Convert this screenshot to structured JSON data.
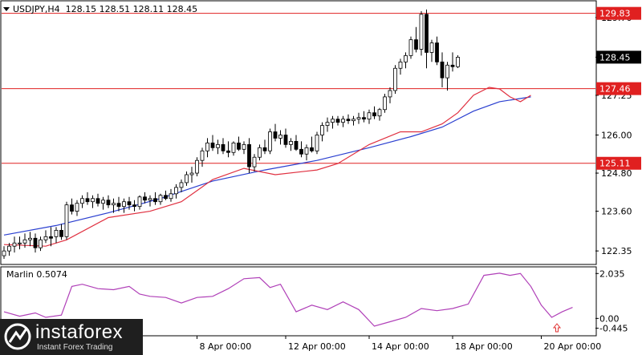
{
  "header": {
    "symbol": "USDJPY,H4",
    "ohlc": "128.15 128.51 128.11 128.45"
  },
  "oscillator": {
    "label": "Marlin 0.5074",
    "ticks": [
      "2.035",
      "0.00",
      "-0.445"
    ]
  },
  "logo": {
    "name": "instaforex",
    "tagline": "Instant Forex Trading"
  },
  "colors": {
    "up": "#ffffff",
    "down": "#000000",
    "ma_red": "#e03040",
    "ma_blue": "#2a3fd0",
    "level_line": "#e02020",
    "level_bg": "#e02020",
    "price_bg": "#000000",
    "marlin": "#b040b8",
    "arrow": "#e03030"
  },
  "chart_data": {
    "type": "candlestick",
    "symbol": "USDJPY",
    "timeframe": "H4",
    "ylim": [
      121.95,
      130.2
    ],
    "y_ticks": [
      122.35,
      123.6,
      124.8,
      126.0,
      127.25,
      128.45,
      129.7
    ],
    "y_tick_labels": [
      "122.35",
      "123.60",
      "124.80",
      "126.00",
      "127.25",
      "128.45",
      "129.70"
    ],
    "x_labels": [
      {
        "index": 37,
        "label": "8 Apr 00:00"
      },
      {
        "index": 54,
        "label": "12 Apr 00:00"
      },
      {
        "index": 70,
        "label": "14 Apr 00:00"
      },
      {
        "index": 86,
        "label": "18 Apr 00:00"
      },
      {
        "index": 103,
        "label": "20 Apr 00:00"
      }
    ],
    "levels": [
      {
        "value": 129.83,
        "label": "129.83"
      },
      {
        "value": 127.46,
        "label": "127.46"
      },
      {
        "value": 125.11,
        "label": "125.11"
      }
    ],
    "current_price": {
      "value": 128.45,
      "label": "128.45"
    },
    "candles": [
      [
        122.2,
        122.5,
        122.1,
        122.35
      ],
      [
        122.35,
        122.6,
        122.2,
        122.5
      ],
      [
        122.5,
        122.8,
        122.3,
        122.6
      ],
      [
        122.6,
        122.8,
        122.4,
        122.6
      ],
      [
        122.6,
        122.9,
        122.45,
        122.7
      ],
      [
        122.7,
        122.95,
        122.5,
        122.75
      ],
      [
        122.75,
        122.9,
        122.3,
        122.45
      ],
      [
        122.45,
        122.8,
        122.35,
        122.7
      ],
      [
        122.7,
        123.0,
        122.6,
        122.8
      ],
      [
        122.8,
        123.1,
        122.5,
        122.75
      ],
      [
        122.8,
        123.1,
        122.6,
        123.0
      ],
      [
        123.0,
        123.2,
        122.7,
        122.8
      ],
      [
        122.8,
        123.9,
        122.7,
        123.8
      ],
      [
        123.8,
        124.0,
        123.5,
        123.6
      ],
      [
        123.6,
        123.95,
        123.45,
        123.85
      ],
      [
        123.85,
        124.1,
        123.7,
        124.0
      ],
      [
        124.0,
        124.2,
        123.8,
        123.9
      ],
      [
        123.9,
        124.1,
        123.7,
        124.0
      ],
      [
        124.0,
        124.15,
        123.75,
        123.85
      ],
      [
        123.85,
        124.05,
        123.65,
        123.95
      ],
      [
        123.95,
        124.1,
        123.7,
        123.8
      ],
      [
        123.8,
        124.0,
        123.55,
        123.85
      ],
      [
        123.85,
        124.05,
        123.6,
        123.75
      ],
      [
        123.75,
        124.0,
        123.55,
        123.9
      ],
      [
        123.9,
        124.05,
        123.65,
        123.8
      ],
      [
        123.8,
        123.95,
        123.6,
        123.75
      ],
      [
        123.75,
        124.1,
        123.65,
        124.05
      ],
      [
        124.05,
        124.2,
        123.85,
        123.95
      ],
      [
        123.95,
        124.1,
        123.75,
        124.0
      ],
      [
        124.0,
        124.2,
        123.8,
        123.9
      ],
      [
        123.9,
        124.15,
        123.8,
        124.1
      ],
      [
        124.1,
        124.25,
        123.95,
        124.0
      ],
      [
        124.0,
        124.3,
        123.9,
        124.15
      ],
      [
        124.15,
        124.45,
        124.0,
        124.35
      ],
      [
        124.35,
        124.6,
        124.2,
        124.5
      ],
      [
        124.5,
        124.85,
        124.4,
        124.75
      ],
      [
        124.75,
        125.0,
        124.5,
        124.8
      ],
      [
        124.8,
        125.3,
        124.7,
        125.2
      ],
      [
        125.2,
        125.6,
        125.0,
        125.5
      ],
      [
        125.5,
        125.9,
        125.3,
        125.75
      ],
      [
        125.75,
        126.0,
        125.5,
        125.6
      ],
      [
        125.6,
        125.85,
        125.4,
        125.7
      ],
      [
        125.7,
        125.9,
        125.4,
        125.5
      ],
      [
        125.5,
        125.8,
        125.3,
        125.45
      ],
      [
        125.45,
        125.8,
        125.35,
        125.75
      ],
      [
        125.75,
        125.95,
        125.5,
        125.55
      ],
      [
        125.55,
        125.8,
        125.4,
        125.7
      ],
      [
        125.7,
        125.9,
        124.8,
        125.0
      ],
      [
        125.0,
        125.4,
        124.85,
        125.3
      ],
      [
        125.3,
        125.7,
        125.2,
        125.6
      ],
      [
        125.6,
        125.85,
        125.4,
        125.5
      ],
      [
        125.5,
        126.2,
        125.4,
        126.1
      ],
      [
        126.1,
        126.35,
        125.8,
        125.9
      ],
      [
        125.9,
        126.15,
        125.7,
        126.0
      ],
      [
        126.0,
        126.2,
        125.6,
        125.7
      ],
      [
        125.7,
        125.9,
        125.5,
        125.8
      ],
      [
        125.8,
        126.0,
        125.5,
        125.55
      ],
      [
        125.55,
        125.8,
        125.3,
        125.4
      ],
      [
        125.4,
        125.7,
        125.2,
        125.6
      ],
      [
        125.6,
        125.95,
        125.45,
        125.5
      ],
      [
        125.5,
        126.1,
        125.4,
        126.0
      ],
      [
        126.0,
        126.4,
        125.8,
        126.3
      ],
      [
        126.3,
        126.55,
        126.1,
        126.4
      ],
      [
        126.4,
        126.6,
        126.2,
        126.5
      ],
      [
        126.5,
        126.6,
        126.3,
        126.4
      ],
      [
        126.4,
        126.6,
        126.25,
        126.5
      ],
      [
        126.5,
        126.65,
        126.35,
        126.45
      ],
      [
        126.45,
        126.6,
        126.3,
        126.5
      ],
      [
        126.5,
        126.7,
        126.35,
        126.55
      ],
      [
        126.55,
        126.75,
        126.4,
        126.5
      ],
      [
        126.5,
        126.8,
        126.35,
        126.7
      ],
      [
        126.7,
        126.9,
        126.5,
        126.6
      ],
      [
        126.6,
        126.85,
        126.45,
        126.8
      ],
      [
        126.8,
        127.3,
        126.7,
        127.2
      ],
      [
        127.2,
        127.5,
        127.0,
        127.4
      ],
      [
        127.4,
        128.2,
        127.3,
        128.1
      ],
      [
        128.1,
        128.4,
        127.9,
        128.3
      ],
      [
        128.3,
        128.6,
        128.1,
        128.5
      ],
      [
        128.5,
        129.1,
        128.4,
        129.0
      ],
      [
        129.0,
        129.4,
        128.6,
        128.7
      ],
      [
        128.7,
        129.9,
        128.5,
        129.8
      ],
      [
        129.8,
        129.95,
        128.1,
        128.6
      ],
      [
        128.6,
        129.0,
        128.3,
        128.9
      ],
      [
        128.9,
        129.1,
        128.2,
        128.3
      ],
      [
        128.3,
        128.6,
        127.5,
        127.8
      ],
      [
        127.8,
        128.3,
        127.4,
        128.2
      ],
      [
        128.2,
        128.6,
        128.0,
        128.15
      ],
      [
        128.15,
        128.51,
        128.11,
        128.45
      ]
    ],
    "ma_red": [
      [
        0,
        122.55
      ],
      [
        8,
        122.5
      ],
      [
        12,
        122.7
      ],
      [
        20,
        123.4
      ],
      [
        28,
        123.6
      ],
      [
        34,
        123.9
      ],
      [
        40,
        124.6
      ],
      [
        46,
        124.95
      ],
      [
        52,
        124.75
      ],
      [
        60,
        124.9
      ],
      [
        64,
        125.1
      ],
      [
        70,
        125.7
      ],
      [
        76,
        126.1
      ],
      [
        80,
        126.1
      ],
      [
        84,
        126.35
      ],
      [
        87,
        126.7
      ],
      [
        90,
        127.25
      ],
      [
        93,
        127.5
      ],
      [
        95,
        127.45
      ],
      [
        97,
        127.2
      ],
      [
        99,
        127.05
      ],
      [
        101,
        127.25
      ]
    ],
    "ma_blue": [
      [
        0,
        122.85
      ],
      [
        10,
        123.15
      ],
      [
        20,
        123.55
      ],
      [
        30,
        124.0
      ],
      [
        40,
        124.55
      ],
      [
        50,
        124.9
      ],
      [
        60,
        125.2
      ],
      [
        70,
        125.6
      ],
      [
        78,
        125.95
      ],
      [
        84,
        126.25
      ],
      [
        90,
        126.75
      ],
      [
        95,
        127.05
      ],
      [
        101,
        127.2
      ]
    ],
    "marlin": {
      "ylim": [
        -0.75,
        2.3
      ],
      "values": [
        [
          0,
          0.3
        ],
        [
          3,
          0.1
        ],
        [
          6,
          0.25
        ],
        [
          8,
          0.05
        ],
        [
          11,
          0.15
        ],
        [
          13,
          1.45
        ],
        [
          15,
          1.55
        ],
        [
          18,
          1.35
        ],
        [
          21,
          1.3
        ],
        [
          24,
          1.45
        ],
        [
          26,
          1.1
        ],
        [
          28,
          1.0
        ],
        [
          31,
          0.95
        ],
        [
          34,
          0.7
        ],
        [
          37,
          0.95
        ],
        [
          40,
          1.0
        ],
        [
          43,
          1.35
        ],
        [
          46,
          1.8
        ],
        [
          49,
          1.85
        ],
        [
          51,
          1.4
        ],
        [
          53,
          1.55
        ],
        [
          56,
          0.3
        ],
        [
          59,
          0.6
        ],
        [
          62,
          0.4
        ],
        [
          65,
          0.75
        ],
        [
          68,
          0.4
        ],
        [
          71,
          -0.35
        ],
        [
          74,
          -0.15
        ],
        [
          77,
          0.05
        ],
        [
          80,
          0.45
        ],
        [
          83,
          0.35
        ],
        [
          86,
          0.45
        ],
        [
          89,
          0.65
        ],
        [
          92,
          1.95
        ],
        [
          95,
          2.05
        ],
        [
          97,
          1.95
        ],
        [
          99,
          2.035
        ],
        [
          101,
          1.45
        ],
        [
          103,
          0.6
        ],
        [
          105,
          0.05
        ],
        [
          107,
          0.3
        ],
        [
          109,
          0.5
        ]
      ],
      "arrow_index": 106
    }
  }
}
